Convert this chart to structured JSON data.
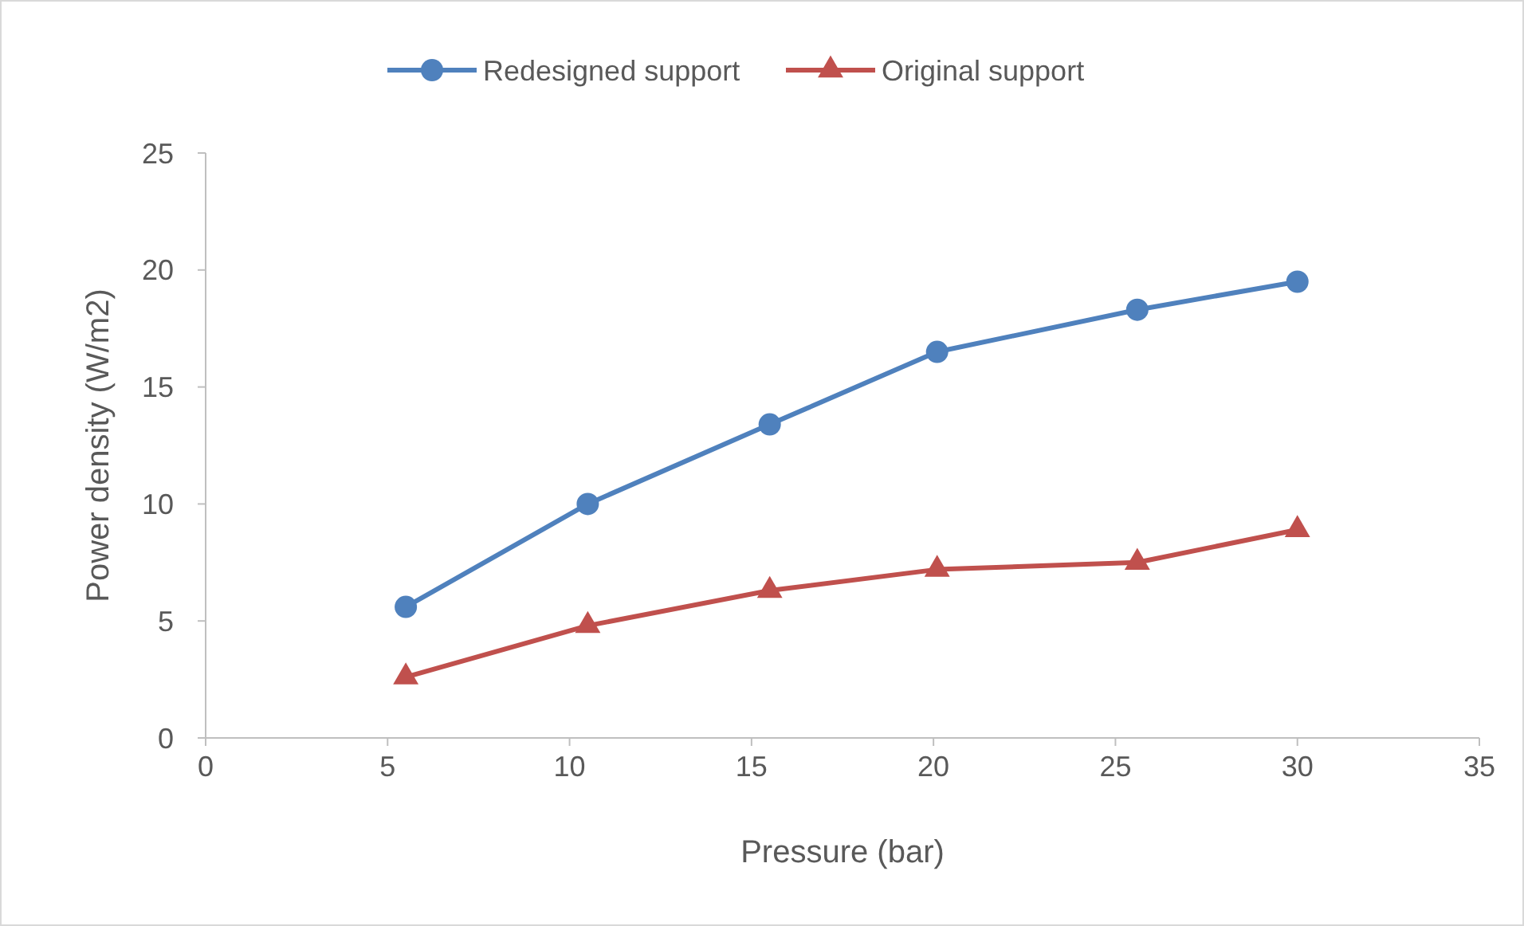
{
  "chart_data": {
    "type": "line",
    "xlabel": "Pressure (bar)",
    "ylabel": "Power density (W/m2)",
    "xlim": [
      0,
      35
    ],
    "xticks": [
      0,
      5,
      10,
      15,
      20,
      25,
      30,
      35
    ],
    "ylim": [
      0,
      25
    ],
    "yticks": [
      0,
      5,
      10,
      15,
      20,
      25
    ],
    "grid": false,
    "legend": "top",
    "line_style": "solid",
    "series": [
      {
        "name": "Redesigned support",
        "color": "#4f81bd",
        "marker": "circle",
        "x": [
          5.5,
          10.5,
          15.5,
          20.1,
          25.6,
          30
        ],
        "values": [
          5.6,
          10,
          13.4,
          16.5,
          18.3,
          19.5
        ]
      },
      {
        "name": "Original support",
        "color": "#c0504d",
        "marker": "triangle",
        "x": [
          5.5,
          10.5,
          15.5,
          20.1,
          25.6,
          30
        ],
        "values": [
          2.6,
          4.8,
          6.3,
          7.2,
          7.5,
          8.9
        ]
      }
    ]
  }
}
